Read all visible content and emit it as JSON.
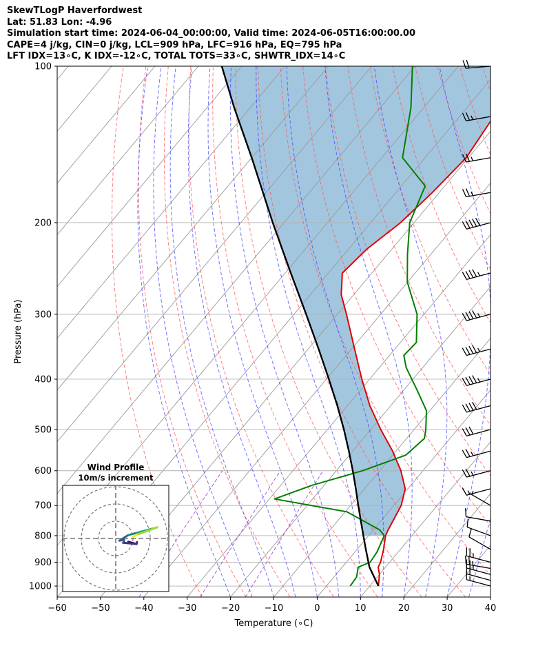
{
  "title": {
    "line1": "SkewTLogP Haverfordwest",
    "line2": "Lat: 51.83   Lon: -4.96",
    "line3": "Simulation start time: 2024-06-04_00:00:00, Valid time: 2024-06-05T16:00:00.00",
    "line4": "CAPE=4 j/kg, CIN=0 j/kg, LCL=909 hPa, LFC=916 hPa, EQ=795 hPa",
    "line5": "LFT IDX=13∘C, K IDX=-12∘C, TOTAL TOTS=33∘C, SHWTR_IDX=14∘C"
  },
  "chart_data": {
    "type": "line",
    "subtype": "skew-T log-P diagram",
    "xlabel": "Temperature (∘C)",
    "ylabel": "Pressure (hPa)",
    "xlim": [
      -60,
      40
    ],
    "ylim": [
      1050,
      100
    ],
    "y_scale": "log",
    "x_ticks": [
      -60,
      -50,
      -40,
      -30,
      -20,
      -10,
      0,
      10,
      20,
      30,
      40
    ],
    "y_ticks": [
      100,
      200,
      300,
      400,
      500,
      600,
      700,
      800,
      900,
      1000
    ],
    "grid": true,
    "colors": {
      "temperature": "#e00000",
      "dewpoint": "#007f00",
      "parcel": "#000000",
      "shade": "#a3c6df",
      "dry_adiabats": "#ff5555",
      "moist_adiabats": "#4444ff",
      "mixing_ratio": "#9933cc",
      "isotherms": "#999999"
    },
    "series": [
      {
        "key": "temperature",
        "pressure": [
          1000,
          950,
          920,
          900,
          850,
          800,
          780,
          700,
          650,
          600,
          550,
          500,
          450,
          400,
          350,
          300,
          275,
          250,
          225,
          200,
          175,
          150,
          125,
          110,
          100
        ],
        "temp": [
          12,
          10,
          8.3,
          7.9,
          6.1,
          3.9,
          3.4,
          1.7,
          -0.6,
          -5.1,
          -10.8,
          -17.7,
          -24.8,
          -31.8,
          -39.3,
          -47.9,
          -52.9,
          -56.8,
          -55.8,
          -53.1,
          -51.6,
          -50.5,
          -52.1,
          -54.3,
          -55.6
        ]
      },
      {
        "key": "dewpoint",
        "pressure": [
          1000,
          960,
          920,
          900,
          860,
          800,
          780,
          720,
          680,
          640,
          600,
          560,
          520,
          500,
          460,
          420,
          380,
          360,
          340,
          300,
          260,
          230,
          200,
          170,
          150,
          120,
          100
        ],
        "temp": [
          5.5,
          5.2,
          3.7,
          5.5,
          5.1,
          3.6,
          1.5,
          -9.6,
          -28.8,
          -22.8,
          -13.9,
          -7.0,
          -5.9,
          -7.3,
          -10.8,
          -16.9,
          -23.8,
          -26.7,
          -26.3,
          -31.6,
          -40.1,
          -45.4,
          -51.0,
          -54.5,
          -65.2,
          -73.0,
          -80.6
        ]
      },
      {
        "key": "parcel",
        "pressure": [
          1000,
          920,
          850,
          800,
          750,
          700,
          650,
          600,
          550,
          500,
          450,
          400,
          350,
          300,
          250,
          200,
          150,
          120,
          100
        ],
        "temp": [
          12,
          6.3,
          2.0,
          -1.2,
          -4.6,
          -8.2,
          -12.0,
          -16.2,
          -20.9,
          -26.2,
          -32.3,
          -39.4,
          -47.6,
          -57.2,
          -68.7,
          -82.6,
          -100.0,
          -113.8,
          -124.6
        ]
      }
    ],
    "inset": {
      "title": "Wind Profile",
      "subtitle": "10m/s increment"
    },
    "wind_barbs": {
      "pressure": [
        1000,
        975,
        950,
        925,
        900,
        850,
        800,
        750,
        700,
        650,
        600,
        550,
        500,
        450,
        400,
        350,
        300,
        250,
        200,
        175,
        150,
        125,
        100
      ],
      "speed_kt": [
        15,
        20,
        25,
        25,
        25,
        10,
        10,
        10,
        5,
        15,
        25,
        25,
        30,
        40,
        45,
        45,
        45,
        45,
        50,
        25,
        25,
        25,
        20
      ],
      "dir_deg": [
        285,
        285,
        285,
        280,
        285,
        300,
        290,
        280,
        300,
        255,
        255,
        255,
        255,
        255,
        255,
        255,
        255,
        255,
        255,
        260,
        260,
        260,
        265
      ]
    }
  }
}
